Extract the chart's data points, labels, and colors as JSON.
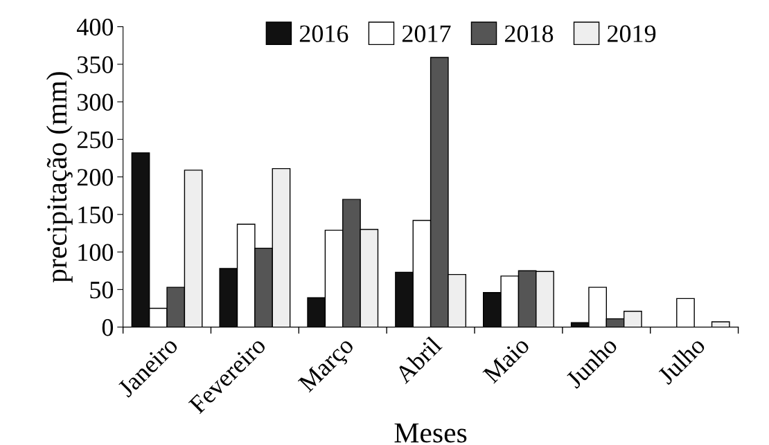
{
  "chart_data": {
    "type": "bar",
    "xlabel": "Meses",
    "ylabel": "precipitação (mm)",
    "categories": [
      "Janeiro",
      "Fevereiro",
      "Março",
      "Abril",
      "Maio",
      "Junho",
      "Julho"
    ],
    "series": [
      {
        "name": "2016",
        "color": "#111111",
        "values": [
          232,
          78,
          39,
          73,
          46,
          6,
          null
        ]
      },
      {
        "name": "2017",
        "color": "#ffffff",
        "values": [
          25,
          137,
          129,
          142,
          68,
          53,
          38
        ]
      },
      {
        "name": "2018",
        "color": "#555555",
        "values": [
          53,
          105,
          170,
          359,
          75,
          11,
          null
        ]
      },
      {
        "name": "2019",
        "color": "#eeeeee",
        "values": [
          209,
          211,
          130,
          70,
          74,
          21,
          7
        ]
      }
    ],
    "ylim": [
      0,
      400
    ],
    "yticks": [
      0,
      50,
      100,
      150,
      200,
      250,
      300,
      350,
      400
    ],
    "grid": false,
    "legend": "top"
  }
}
